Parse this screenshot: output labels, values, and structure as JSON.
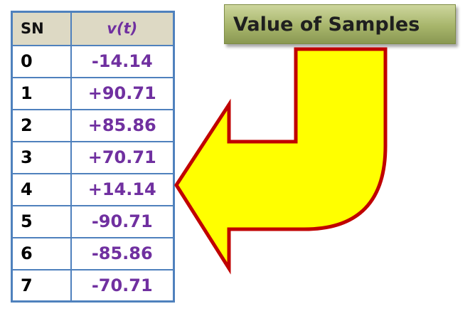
{
  "title": "Value of Samples",
  "table": {
    "headers": {
      "sn": "SN",
      "v_prefix": "v(",
      "v_var": "t",
      "v_suffix": ")"
    },
    "rows": [
      {
        "sn": "0",
        "v": "-14.14"
      },
      {
        "sn": "1",
        "v": "+90.71"
      },
      {
        "sn": "2",
        "v": "+85.86"
      },
      {
        "sn": "3",
        "v": "+70.71"
      },
      {
        "sn": "4",
        "v": "+14.14"
      },
      {
        "sn": "5",
        "v": "-90.71"
      },
      {
        "sn": "6",
        "v": "-85.86"
      },
      {
        "sn": "7",
        "v": "-70.71"
      }
    ]
  },
  "colors": {
    "table_border": "#4f81bd",
    "header_fill": "#ddd9c4",
    "value_text": "#7030a0",
    "arrow_fill": "#ffff00",
    "arrow_stroke": "#c00000",
    "title_fill": "#a7b56b"
  },
  "icons": {
    "arrow": "u-turn-arrow-icon"
  }
}
